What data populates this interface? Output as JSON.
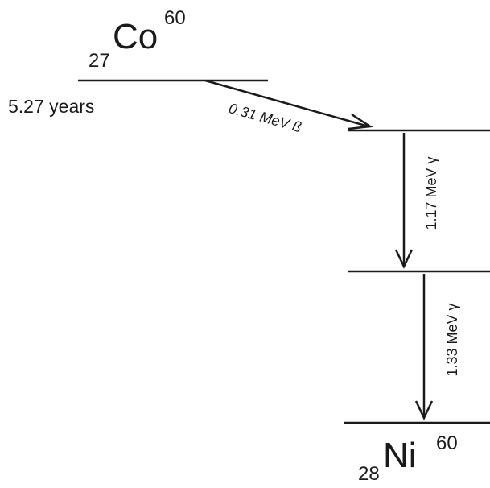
{
  "parent": {
    "atomic_number": "27",
    "symbol": "Co",
    "mass_number": "60",
    "half_life": "5.27 years"
  },
  "transitions": [
    {
      "label": "0.31 MeV  ß"
    },
    {
      "label": "1.17 MeV γ"
    },
    {
      "label": "1.33 MeV γ"
    }
  ],
  "daughter": {
    "atomic_number": "28",
    "symbol": "Ni",
    "mass_number": "60"
  }
}
